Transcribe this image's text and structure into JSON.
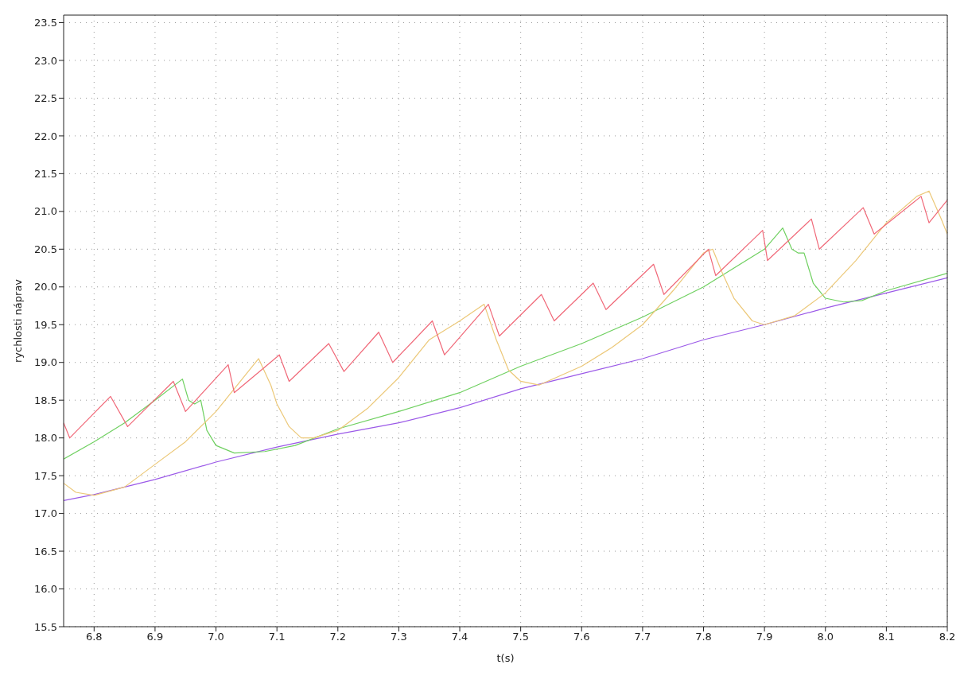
{
  "chart_data": {
    "type": "line",
    "xlabel": "t(s)",
    "ylabel": "rychlosti náprav",
    "xlim": [
      6.75,
      8.2
    ],
    "ylim": [
      15.5,
      23.6
    ],
    "xticks": [
      6.8,
      6.9,
      {
        "value": 7,
        "label": "7.0"
      },
      7.1,
      7.2,
      7.3,
      7.4,
      7.5,
      7.6,
      7.7,
      7.8,
      7.9,
      {
        "value": 8,
        "label": "8.0"
      },
      8.1,
      8.2
    ],
    "yticks": [
      15.5,
      {
        "value": 16,
        "label": "16.0"
      },
      16.5,
      {
        "value": 17,
        "label": "17.0"
      },
      17.5,
      {
        "value": 18,
        "label": "18.0"
      },
      18.5,
      {
        "value": 19,
        "label": "19.0"
      },
      19.5,
      {
        "value": 20,
        "label": "20.0"
      },
      20.5,
      {
        "value": 21,
        "label": "21.0"
      },
      21.5,
      {
        "value": 22,
        "label": "22.0"
      },
      22.5,
      {
        "value": 23,
        "label": "23.0"
      },
      23.5
    ],
    "grid": true,
    "legend": false,
    "marker": "none",
    "line_style": "solid",
    "series": [
      {
        "color": "#9b59e8",
        "x": [
          6.75,
          6.8,
          6.9,
          7.0,
          7.1,
          7.2,
          7.3,
          7.4,
          7.5,
          7.6,
          7.7,
          7.8,
          7.9,
          8.0,
          8.1,
          8.2
        ],
        "values": [
          17.17,
          17.25,
          17.45,
          17.68,
          17.88,
          18.05,
          18.2,
          18.4,
          18.65,
          18.85,
          19.05,
          19.3,
          19.5,
          19.72,
          19.92,
          20.12
        ]
      },
      {
        "color": "#6fd060",
        "x": [
          6.75,
          6.8,
          6.85,
          6.9,
          6.945,
          6.955,
          6.965,
          6.975,
          6.985,
          7.0,
          7.03,
          7.08,
          7.13,
          7.2,
          7.3,
          7.4,
          7.5,
          7.6,
          7.7,
          7.8,
          7.9,
          7.93,
          7.945,
          7.955,
          7.965,
          7.98,
          8.0,
          8.03,
          8.06,
          8.1,
          8.2
        ],
        "values": [
          17.72,
          17.95,
          18.2,
          18.5,
          18.78,
          18.5,
          18.45,
          18.5,
          18.1,
          17.9,
          17.8,
          17.82,
          17.9,
          18.12,
          18.35,
          18.6,
          18.95,
          19.25,
          19.6,
          20.0,
          20.5,
          20.78,
          20.5,
          20.45,
          20.45,
          20.05,
          19.85,
          19.8,
          19.82,
          19.95,
          20.18
        ]
      },
      {
        "color": "#ecc878",
        "x": [
          6.75,
          6.77,
          6.8,
          6.85,
          6.9,
          6.95,
          7.0,
          7.05,
          7.07,
          7.09,
          7.1,
          7.12,
          7.14,
          7.16,
          7.2,
          7.25,
          7.3,
          7.35,
          7.4,
          7.44,
          7.46,
          7.48,
          7.5,
          7.53,
          7.6,
          7.65,
          7.7,
          7.75,
          7.8,
          7.815,
          7.83,
          7.85,
          7.88,
          7.9,
          7.95,
          8.0,
          8.05,
          8.1,
          8.15,
          8.17,
          8.19,
          8.2
        ],
        "values": [
          17.4,
          17.28,
          17.24,
          17.35,
          17.65,
          17.95,
          18.35,
          18.85,
          19.05,
          18.7,
          18.45,
          18.15,
          18.0,
          18.0,
          18.1,
          18.4,
          18.8,
          19.3,
          19.55,
          19.77,
          19.3,
          18.9,
          18.75,
          18.7,
          18.95,
          19.2,
          19.5,
          19.95,
          20.45,
          20.5,
          20.2,
          19.85,
          19.55,
          19.5,
          19.62,
          19.92,
          20.35,
          20.85,
          21.2,
          21.27,
          20.9,
          20.7
        ]
      },
      {
        "color": "#f06878",
        "x": [
          6.75,
          6.76,
          6.827,
          6.855,
          6.93,
          6.95,
          7.02,
          7.03,
          7.104,
          7.12,
          7.185,
          7.21,
          7.267,
          7.29,
          7.355,
          7.375,
          7.447,
          7.465,
          7.534,
          7.555,
          7.619,
          7.64,
          7.718,
          7.735,
          7.808,
          7.82,
          7.897,
          7.905,
          7.977,
          7.99,
          8.062,
          8.08,
          8.157,
          8.17,
          8.2
        ],
        "values": [
          18.2,
          18.0,
          18.55,
          18.15,
          18.75,
          18.35,
          18.97,
          18.6,
          19.1,
          18.75,
          19.25,
          18.88,
          19.4,
          19.0,
          19.55,
          19.1,
          19.77,
          19.35,
          19.9,
          19.55,
          20.05,
          19.7,
          20.3,
          19.9,
          20.5,
          20.15,
          20.75,
          20.35,
          20.9,
          20.5,
          21.05,
          20.7,
          21.2,
          20.85,
          21.15
        ]
      }
    ]
  }
}
